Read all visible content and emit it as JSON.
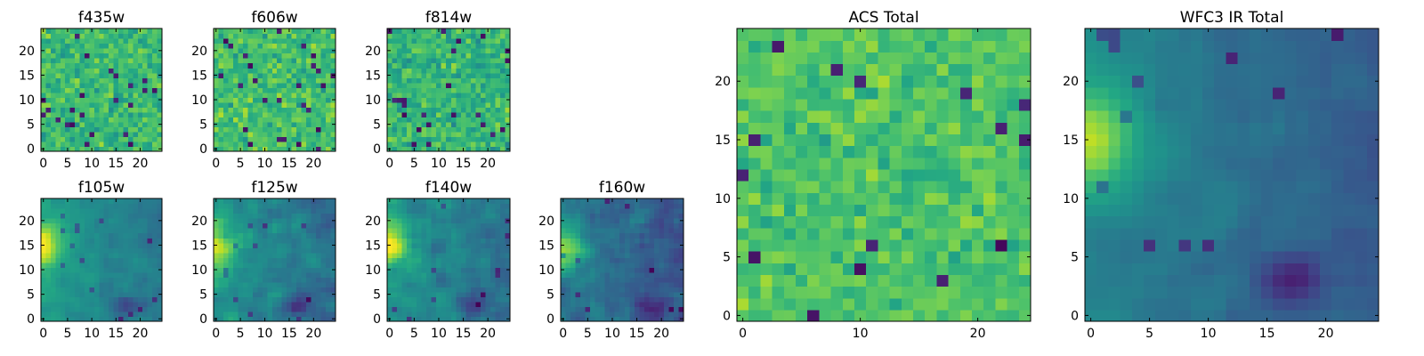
{
  "chart_data": {
    "type": "heatmap",
    "colormap": "viridis",
    "grid_size": 25,
    "panels": [
      {
        "id": "f435w",
        "title": "f435w",
        "xticks": [
          0,
          5,
          10,
          15,
          20
        ],
        "yticks": [
          0,
          5,
          10,
          15,
          20
        ],
        "pattern": "noise",
        "seed": 11,
        "mean": 0.68,
        "spread": 0.22
      },
      {
        "id": "f606w",
        "title": "f606w",
        "xticks": [
          0,
          5,
          10,
          15,
          20
        ],
        "yticks": [
          0,
          5,
          10,
          15,
          20
        ],
        "pattern": "noise",
        "seed": 23,
        "mean": 0.7,
        "spread": 0.22
      },
      {
        "id": "f814w",
        "title": "f814w",
        "xticks": [
          0,
          5,
          10,
          15,
          20
        ],
        "yticks": [
          0,
          5,
          10,
          15,
          20
        ],
        "pattern": "noise",
        "seed": 37,
        "mean": 0.66,
        "spread": 0.24
      },
      {
        "id": "f105w",
        "title": "f105w",
        "xticks": [
          0,
          5,
          10,
          15,
          20
        ],
        "yticks": [
          0,
          5,
          10,
          15,
          20
        ],
        "pattern": "ir",
        "seed": 41,
        "mean": 0.55,
        "spread": 0.12
      },
      {
        "id": "f125w",
        "title": "f125w",
        "xticks": [
          0,
          5,
          10,
          15,
          20
        ],
        "yticks": [
          0,
          5,
          10,
          15,
          20
        ],
        "pattern": "ir",
        "seed": 53,
        "mean": 0.52,
        "spread": 0.16
      },
      {
        "id": "f140w",
        "title": "f140w",
        "xticks": [
          0,
          5,
          10,
          15,
          20
        ],
        "yticks": [
          0,
          5,
          10,
          15,
          20
        ],
        "pattern": "ir",
        "seed": 67,
        "mean": 0.52,
        "spread": 0.16
      },
      {
        "id": "f160w",
        "title": "f160w",
        "xticks": [
          0,
          5,
          10,
          15,
          20
        ],
        "yticks": [
          0,
          5,
          10,
          15,
          20
        ],
        "pattern": "ir",
        "seed": 79,
        "mean": 0.42,
        "spread": 0.16
      },
      {
        "id": "acs-total",
        "title": "ACS Total",
        "xticks": [
          0,
          10,
          20
        ],
        "yticks": [
          0,
          5,
          10,
          15,
          20
        ],
        "pattern": "noise",
        "seed": 97,
        "mean": 0.72,
        "spread": 0.18
      },
      {
        "id": "wfc3-ir-total",
        "title": "WFC3 IR Total",
        "xticks": [
          0,
          5,
          10,
          15,
          20
        ],
        "yticks": [
          0,
          5,
          10,
          15,
          20
        ],
        "pattern": "ir",
        "seed": 101,
        "mean": 0.45,
        "spread": 0.08
      }
    ]
  }
}
